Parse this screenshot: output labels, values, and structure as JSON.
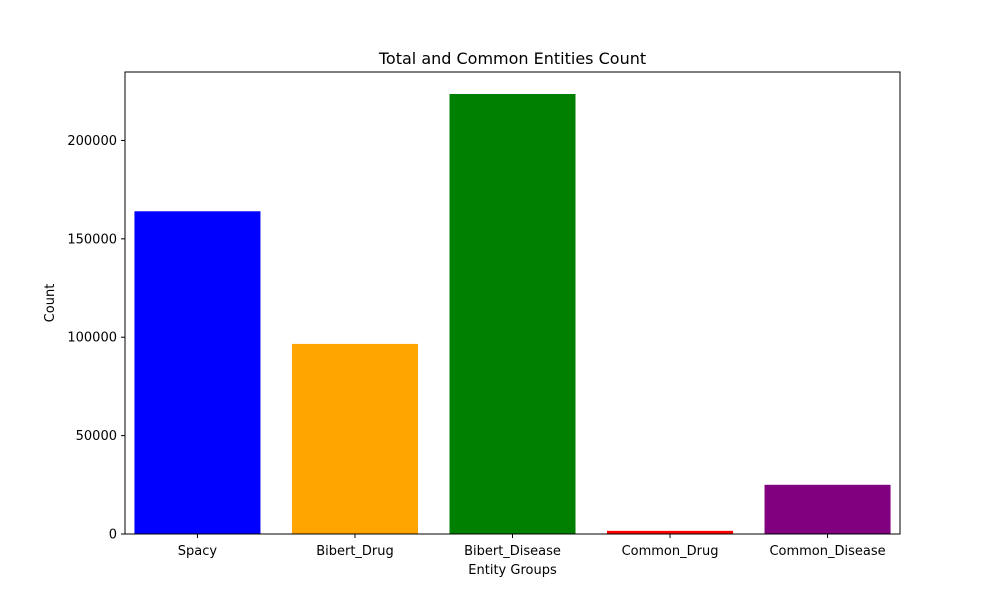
{
  "chart_data": {
    "type": "bar",
    "title": "Total and Common Entities Count",
    "xlabel": "Entity Groups",
    "ylabel": "Count",
    "categories": [
      "Spacy",
      "Bibert_Drug",
      "Bibert_Disease",
      "Common_Drug",
      "Common_Disease"
    ],
    "values": [
      164000,
      96600,
      223600,
      1600,
      25000
    ],
    "colors": [
      "#0000ff",
      "#ffa500",
      "#008000",
      "#ff0000",
      "#800080"
    ],
    "ylim": [
      0,
      234780
    ],
    "yticks": [
      0,
      50000,
      100000,
      150000,
      200000
    ],
    "ytick_labels": [
      "0",
      "50000",
      "100000",
      "150000",
      "200000"
    ],
    "grid": false,
    "legend": "none"
  }
}
